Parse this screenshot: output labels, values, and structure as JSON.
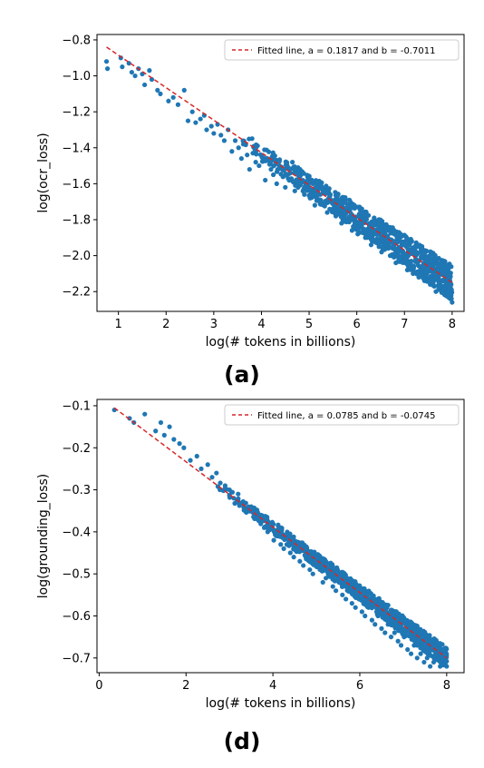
{
  "chart_data": [
    {
      "type": "scatter",
      "title": "",
      "xlabel": "log(# tokens in billions)",
      "ylabel": "log(ocr_loss)",
      "xlim": [
        0.55,
        8.25
      ],
      "ylim": [
        -2.31,
        -0.77
      ],
      "xticks": [
        "1",
        "2",
        "3",
        "4",
        "5",
        "6",
        "7",
        "8"
      ],
      "yticks": [
        "−0.8",
        "−1.0",
        "−1.2",
        "−1.4",
        "−1.6",
        "−1.8",
        "−2.0",
        "−2.2"
      ],
      "legend": {
        "label": "Fitted line, a = 0.1817 and b = -0.7011",
        "position": "upper right"
      },
      "fit_line": {
        "x": [
          0.75,
          8.0
        ],
        "y": [
          -0.84,
          -2.15
        ],
        "color": "#d62728"
      },
      "scatter_color": "#1f77b4",
      "series": [
        {
          "x": [
            0.75,
            0.77,
            1.05,
            1.08,
            1.22,
            1.28,
            1.35,
            1.42,
            1.5,
            1.55,
            1.65,
            1.7,
            1.82,
            1.88,
            2.05,
            2.15,
            2.25,
            2.38,
            2.46,
            2.55,
            2.62,
            2.72,
            2.8,
            2.85,
            2.95,
            3.0,
            3.08,
            3.15,
            3.22,
            3.3,
            3.38,
            3.45,
            3.52,
            3.58,
            3.62,
            3.7,
            3.75,
            3.82,
            3.88,
            3.95,
            4.02,
            4.08,
            4.12,
            4.2,
            4.25,
            4.32,
            4.38,
            4.45,
            4.5,
            4.58,
            4.65,
            4.7,
            4.78,
            4.85,
            4.9,
            4.96,
            5.02,
            5.08,
            5.12,
            5.2,
            5.25,
            5.32,
            5.38,
            5.45,
            5.5,
            5.56,
            5.62,
            5.68,
            5.72,
            5.78,
            5.85,
            5.9,
            5.96,
            6.02,
            6.08,
            6.12,
            6.18,
            6.24,
            6.3,
            6.36,
            6.42,
            6.48,
            6.52,
            6.58,
            6.64,
            6.7,
            6.76,
            6.82,
            6.88,
            6.94,
            7.0,
            7.06,
            7.12,
            7.18,
            7.24,
            7.3,
            7.36,
            7.42,
            7.48,
            7.54,
            7.6,
            7.66,
            7.72,
            7.78,
            7.84,
            7.9,
            7.96,
            8.0
          ],
          "y": [
            -0.92,
            -0.96,
            -0.9,
            -0.95,
            -0.93,
            -0.98,
            -1.0,
            -0.96,
            -0.99,
            -1.05,
            -0.97,
            -1.02,
            -1.08,
            -1.1,
            -1.14,
            -1.12,
            -1.16,
            -1.08,
            -1.25,
            -1.2,
            -1.26,
            -1.24,
            -1.22,
            -1.3,
            -1.28,
            -1.32,
            -1.27,
            -1.33,
            -1.36,
            -1.3,
            -1.42,
            -1.36,
            -1.4,
            -1.46,
            -1.38,
            -1.44,
            -1.52,
            -1.43,
            -1.48,
            -1.5,
            -1.45,
            -1.58,
            -1.47,
            -1.52,
            -1.55,
            -1.6,
            -1.5,
            -1.56,
            -1.62,
            -1.58,
            -1.48,
            -1.64,
            -1.6,
            -1.54,
            -1.66,
            -1.62,
            -1.68,
            -1.6,
            -1.72,
            -1.66,
            -1.7,
            -1.64,
            -1.76,
            -1.7,
            -1.74,
            -1.78,
            -1.72,
            -1.82,
            -1.76,
            -1.8,
            -1.72,
            -1.86,
            -1.82,
            -1.88,
            -1.84,
            -1.78,
            -1.9,
            -1.86,
            -1.94,
            -1.88,
            -1.92,
            -1.84,
            -1.98,
            -1.94,
            -1.9,
            -2.0,
            -1.96,
            -2.04,
            -1.98,
            -2.02,
            -1.94,
            -2.08,
            -2.04,
            -2.1,
            -2.0,
            -2.12,
            -2.06,
            -2.14,
            -2.02,
            -2.16,
            -2.1,
            -2.2,
            -2.08,
            -2.18,
            -2.14,
            -2.22,
            -2.12,
            -2.26
          ]
        }
      ]
    },
    {
      "type": "scatter",
      "title": "",
      "xlabel": "log(# tokens in billions)",
      "ylabel": "log(grounding_loss)",
      "xlim": [
        -0.05,
        8.4
      ],
      "ylim": [
        -0.735,
        -0.085
      ],
      "xticks": [
        "0",
        "2",
        "4",
        "6",
        "8"
      ],
      "yticks": [
        "−0.1",
        "−0.2",
        "−0.3",
        "−0.4",
        "−0.5",
        "−0.6",
        "−0.7"
      ],
      "legend": {
        "label": "Fitted line, a = 0.0785 and b = -0.0745",
        "position": "upper right"
      },
      "fit_line": {
        "x": [
          0.35,
          8.0
        ],
        "y": [
          -0.105,
          -0.7
        ],
        "color": "#d62728"
      },
      "scatter_color": "#1f77b4",
      "series": [
        {
          "x": [
            0.35,
            0.7,
            0.8,
            1.05,
            1.3,
            1.42,
            1.5,
            1.62,
            1.72,
            1.85,
            1.95,
            2.1,
            2.25,
            2.35,
            2.5,
            2.6,
            2.7,
            2.78,
            2.9,
            3.0,
            3.1,
            3.2,
            3.3,
            3.4,
            3.5,
            3.58,
            3.65,
            3.72,
            3.8,
            3.88,
            3.95,
            4.02,
            4.1,
            4.18,
            4.25,
            4.32,
            4.4,
            4.48,
            4.55,
            4.62,
            4.7,
            4.78,
            4.85,
            4.92,
            5.0,
            5.08,
            5.15,
            5.22,
            5.3,
            5.38,
            5.45,
            5.52,
            5.6,
            5.68,
            5.75,
            5.82,
            5.9,
            5.98,
            6.05,
            6.12,
            6.2,
            6.28,
            6.35,
            6.42,
            6.5,
            6.58,
            6.65,
            6.72,
            6.8,
            6.88,
            6.95,
            7.02,
            7.1,
            7.18,
            7.25,
            7.32,
            7.4,
            7.48,
            7.55,
            7.62,
            7.7,
            7.78,
            7.85,
            7.92,
            8.0
          ],
          "y": [
            -0.11,
            -0.13,
            -0.14,
            -0.12,
            -0.16,
            -0.14,
            -0.17,
            -0.15,
            -0.18,
            -0.19,
            -0.2,
            -0.23,
            -0.22,
            -0.25,
            -0.24,
            -0.27,
            -0.26,
            -0.3,
            -0.29,
            -0.3,
            -0.32,
            -0.31,
            -0.33,
            -0.35,
            -0.34,
            -0.36,
            -0.37,
            -0.36,
            -0.39,
            -0.4,
            -0.38,
            -0.42,
            -0.41,
            -0.43,
            -0.44,
            -0.43,
            -0.45,
            -0.46,
            -0.44,
            -0.47,
            -0.48,
            -0.46,
            -0.49,
            -0.5,
            -0.48,
            -0.47,
            -0.52,
            -0.51,
            -0.49,
            -0.53,
            -0.54,
            -0.52,
            -0.55,
            -0.56,
            -0.54,
            -0.57,
            -0.58,
            -0.56,
            -0.59,
            -0.6,
            -0.58,
            -0.61,
            -0.62,
            -0.6,
            -0.63,
            -0.64,
            -0.62,
            -0.65,
            -0.64,
            -0.66,
            -0.67,
            -0.65,
            -0.68,
            -0.69,
            -0.67,
            -0.7,
            -0.69,
            -0.71,
            -0.7,
            -0.72,
            -0.71,
            -0.7,
            -0.72,
            -0.71,
            -0.72
          ]
        }
      ]
    }
  ],
  "captions": {
    "a": "(a)",
    "d": "(d)"
  }
}
